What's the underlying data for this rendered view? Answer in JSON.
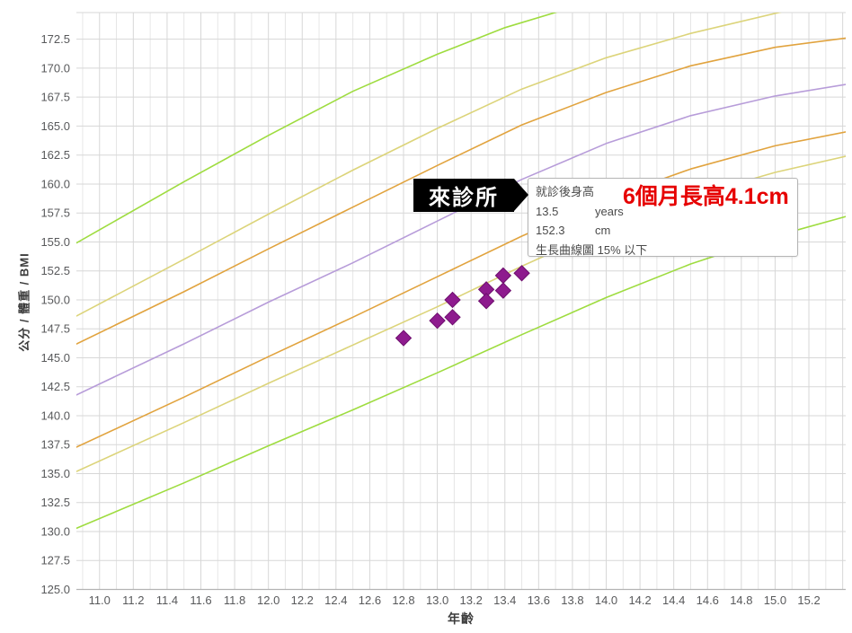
{
  "axes": {
    "y_title": "公分 / 體重 / BMI",
    "x_title": "年齡",
    "y_ticks": [
      "172.5",
      "170.0",
      "167.5",
      "165.0",
      "162.5",
      "160.0",
      "157.5",
      "155.0",
      "152.5",
      "150.0",
      "147.5",
      "145.0",
      "142.5",
      "140.0",
      "137.5",
      "135.0",
      "132.5",
      "130.0",
      "127.5",
      "125.0"
    ],
    "x_ticks": [
      "11.0",
      "11.2",
      "11.4",
      "11.6",
      "11.8",
      "12.0",
      "12.2",
      "12.4",
      "12.6",
      "12.8",
      "13.0",
      "13.2",
      "13.4",
      "13.6",
      "13.8",
      "14.0",
      "14.2",
      "14.4",
      "14.6",
      "14.8",
      "15.0",
      "15.2"
    ]
  },
  "callout": {
    "label": "來診所"
  },
  "tooltip": {
    "title": "就診後身高",
    "rows": [
      {
        "value": "13.5",
        "unit": "years"
      },
      {
        "value": "152.3",
        "unit": "cm"
      }
    ],
    "footer": "生長曲線圖 15% 以下"
  },
  "annotation": {
    "text": "6個月長高4.1cm",
    "color": "#e60000"
  },
  "chart_data": {
    "type": "line",
    "title": "",
    "xlabel": "年齡",
    "ylabel": "公分 / 體重 / BMI",
    "xlim": [
      10.863,
      15.418
    ],
    "ylim": [
      125.0,
      174.8
    ],
    "x_tick_step": 0.2,
    "x_minor_step": 0.1,
    "y_tick_step": 2.5,
    "grid": true,
    "legend": false,
    "colors": {
      "green": "#9edc3f",
      "khaki": "#dcd47a",
      "orange": "#e1a33e",
      "purple": "#b79cd9",
      "point_fill": "#8e1b8e",
      "point_stroke": "#6e0f6e",
      "grid_major": "#d7d7d7",
      "grid_minor": "#e6e6e6",
      "axis_line": "#b3b3b3",
      "tick_label": "#58595b"
    },
    "series": [
      {
        "name": "percentile-curve-green-upper",
        "color": "#9edc3f",
        "points": [
          [
            10.85,
            154.8
          ],
          [
            11.5,
            160.2
          ],
          [
            12.0,
            164.2
          ],
          [
            12.5,
            168.0
          ],
          [
            13.0,
            171.2
          ],
          [
            13.4,
            173.5
          ],
          [
            13.72,
            174.9
          ]
        ]
      },
      {
        "name": "percentile-curve-khaki-upper",
        "color": "#dcd47a",
        "points": [
          [
            10.85,
            148.5
          ],
          [
            11.5,
            153.5
          ],
          [
            12.0,
            157.4
          ],
          [
            12.5,
            161.2
          ],
          [
            13.0,
            164.8
          ],
          [
            13.5,
            168.2
          ],
          [
            14.0,
            170.9
          ],
          [
            14.5,
            173.0
          ],
          [
            15.05,
            174.9
          ]
        ]
      },
      {
        "name": "percentile-curve-orange-upper",
        "color": "#e1a33e",
        "points": [
          [
            10.85,
            146.1
          ],
          [
            11.5,
            150.7
          ],
          [
            12.0,
            154.4
          ],
          [
            12.5,
            158.0
          ],
          [
            13.0,
            161.6
          ],
          [
            13.5,
            165.1
          ],
          [
            14.0,
            167.9
          ],
          [
            14.5,
            170.2
          ],
          [
            15.0,
            171.8
          ],
          [
            15.42,
            172.6
          ]
        ]
      },
      {
        "name": "percentile-curve-purple-middle",
        "color": "#b79cd9",
        "points": [
          [
            10.85,
            141.7
          ],
          [
            11.5,
            146.2
          ],
          [
            12.0,
            149.8
          ],
          [
            12.5,
            153.2
          ],
          [
            13.0,
            156.8
          ],
          [
            13.5,
            160.4
          ],
          [
            14.0,
            163.5
          ],
          [
            14.5,
            165.9
          ],
          [
            15.0,
            167.6
          ],
          [
            15.42,
            168.6
          ]
        ]
      },
      {
        "name": "percentile-curve-orange-lower",
        "color": "#e1a33e",
        "points": [
          [
            10.85,
            137.2
          ],
          [
            11.5,
            141.6
          ],
          [
            12.0,
            145.1
          ],
          [
            12.5,
            148.5
          ],
          [
            13.0,
            152.0
          ],
          [
            13.5,
            155.5
          ],
          [
            14.0,
            158.7
          ],
          [
            14.5,
            161.3
          ],
          [
            15.0,
            163.3
          ],
          [
            15.42,
            164.5
          ]
        ]
      },
      {
        "name": "percentile-curve-khaki-lower",
        "color": "#dcd47a",
        "points": [
          [
            10.85,
            135.1
          ],
          [
            11.5,
            139.4
          ],
          [
            12.0,
            142.8
          ],
          [
            12.5,
            146.1
          ],
          [
            13.0,
            149.4
          ],
          [
            13.5,
            152.9
          ],
          [
            14.0,
            156.2
          ],
          [
            14.5,
            158.9
          ],
          [
            15.0,
            161.0
          ],
          [
            15.42,
            162.4
          ]
        ]
      },
      {
        "name": "percentile-curve-green-lower",
        "color": "#9edc3f",
        "points": [
          [
            10.85,
            130.2
          ],
          [
            11.5,
            134.2
          ],
          [
            12.0,
            137.4
          ],
          [
            12.5,
            140.5
          ],
          [
            13.0,
            143.7
          ],
          [
            13.5,
            147.0
          ],
          [
            14.0,
            150.2
          ],
          [
            14.5,
            153.1
          ],
          [
            15.0,
            155.5
          ],
          [
            15.42,
            157.2
          ]
        ]
      }
    ],
    "points": [
      [
        12.8,
        146.7
      ],
      [
        13.0,
        148.2
      ],
      [
        13.09,
        150.0
      ],
      [
        13.09,
        148.5
      ],
      [
        13.29,
        150.9
      ],
      [
        13.29,
        149.9
      ],
      [
        13.39,
        152.1
      ],
      [
        13.39,
        150.8
      ],
      [
        13.5,
        152.3
      ]
    ]
  }
}
